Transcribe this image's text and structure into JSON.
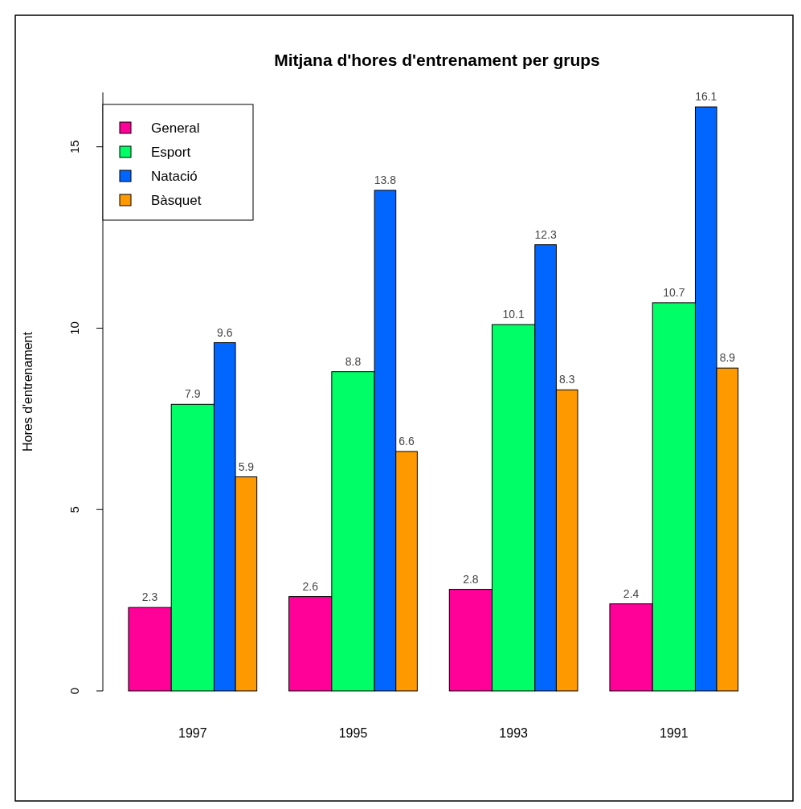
{
  "chart_data": {
    "type": "bar",
    "title": "Mitjana d'hores d'entrenament per grups",
    "ylabel": "Hores d'entrenament",
    "categories": [
      "1997",
      "1995",
      "1993",
      "1991"
    ],
    "series": [
      {
        "name": "General",
        "color": "#ff0099",
        "values": [
          2.3,
          2.6,
          2.8,
          2.4
        ]
      },
      {
        "name": "Esport",
        "color": "#00ff66",
        "values": [
          7.9,
          8.8,
          10.1,
          10.7
        ]
      },
      {
        "name": "Natació",
        "color": "#0066ff",
        "values": [
          9.6,
          13.8,
          12.3,
          16.1
        ]
      },
      {
        "name": "Bàsquet",
        "color": "#ff9900",
        "values": [
          5.9,
          6.6,
          8.3,
          8.9
        ]
      }
    ],
    "ylim": [
      0,
      16.5
    ],
    "yticks": [
      0,
      5,
      10,
      15
    ],
    "data_labels": true,
    "legend": "top left",
    "grid": false
  }
}
